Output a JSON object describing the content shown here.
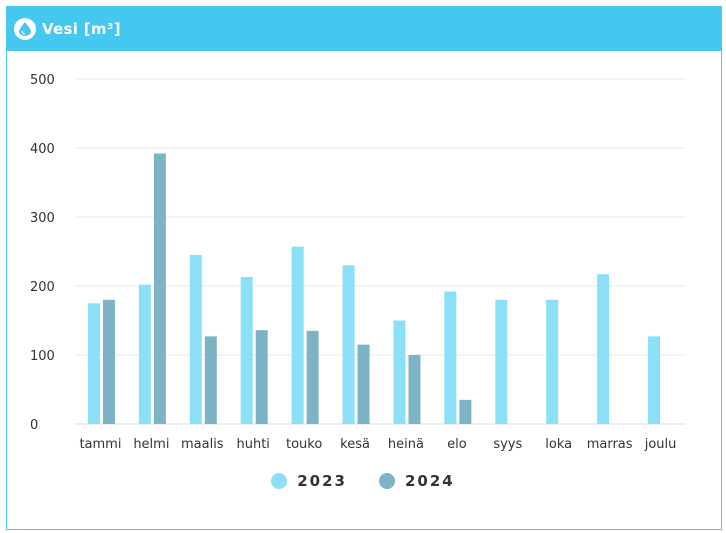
{
  "card": {
    "title": "Vesi [m³]",
    "icon": "water-drop-icon",
    "accent_color": "#45c8f0"
  },
  "chart_data": {
    "type": "bar",
    "title": "Vesi [m³]",
    "xlabel": "",
    "ylabel": "",
    "ylim": [
      0,
      500
    ],
    "yticks": [
      0,
      100,
      200,
      300,
      400,
      500
    ],
    "grid": true,
    "legend_position": "bottom",
    "categories": [
      "tammi",
      "helmi",
      "maalis",
      "huhti",
      "touko",
      "kesä",
      "heinä",
      "elo",
      "syys",
      "loka",
      "marras",
      "joulu"
    ],
    "series": [
      {
        "name": "2023",
        "color": "#8be0f7",
        "values": [
          175,
          202,
          245,
          213,
          257,
          230,
          150,
          192,
          180,
          180,
          217,
          127
        ]
      },
      {
        "name": "2024",
        "color": "#7db3c4",
        "values": [
          180,
          392,
          127,
          136,
          135,
          115,
          100,
          35,
          null,
          null,
          null,
          null
        ]
      }
    ]
  }
}
